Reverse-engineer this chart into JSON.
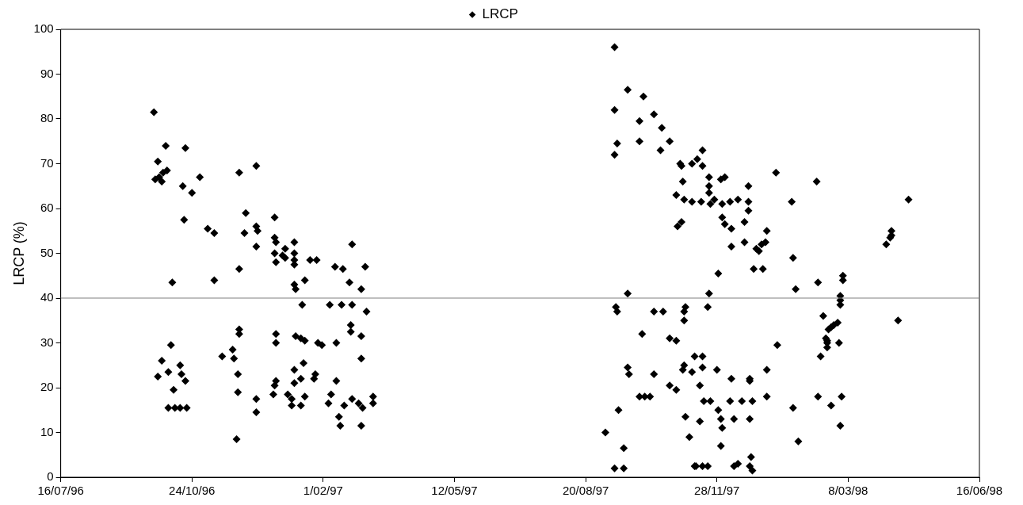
{
  "chart_data": {
    "type": "scatter",
    "ylabel": "LRCP (%)",
    "legend": "top",
    "marker": "diamond",
    "grid": false,
    "xlim": [
      "1996-07-16",
      "1998-06-16"
    ],
    "xticks": [
      {
        "value": "1996-07-16",
        "label": "16/07/96"
      },
      {
        "value": "1996-10-24",
        "label": "24/10/96"
      },
      {
        "value": "1997-02-01",
        "label": "1/02/97"
      },
      {
        "value": "1997-05-12",
        "label": "12/05/97"
      },
      {
        "value": "1997-08-20",
        "label": "20/08/97"
      },
      {
        "value": "1997-11-28",
        "label": "28/11/97"
      },
      {
        "value": "1998-03-08",
        "label": "8/03/98"
      },
      {
        "value": "1998-06-16",
        "label": "16/06/98"
      }
    ],
    "ylim": [
      0,
      100
    ],
    "yticks": [
      0,
      10,
      20,
      30,
      40,
      50,
      60,
      70,
      80,
      90,
      100
    ],
    "ref_lines": [
      {
        "axis": "y",
        "value": 40,
        "color": "#808080"
      }
    ],
    "series": [
      {
        "name": "LRCP",
        "color": "#000000",
        "x": [
          "1996-09-25",
          "1996-09-26",
          "1996-09-28",
          "1996-09-29",
          "1996-10-01",
          "1996-10-02",
          "1996-10-04",
          "1996-10-05",
          "1996-10-09",
          "1996-09-28",
          "1996-10-01",
          "1996-10-06",
          "1996-10-08",
          "1996-10-10",
          "1996-10-06",
          "1996-10-11",
          "1996-10-15",
          "1996-10-20",
          "1996-10-15",
          "1996-10-16",
          "1996-10-19",
          "1996-10-17",
          "1996-10-18",
          "1996-10-19",
          "1996-10-24",
          "1996-10-30",
          "1996-11-05",
          "1996-11-10",
          "1996-11-10",
          "1996-11-16",
          "1996-11-24",
          "1996-11-25",
          "1996-11-28",
          "1996-11-29",
          "1996-11-29",
          "1996-11-28",
          "1996-11-29",
          "1996-11-29",
          "1996-11-27",
          "1996-12-03",
          "1996-12-04",
          "1996-12-12",
          "1996-12-12",
          "1996-12-13",
          "1996-12-12",
          "1996-12-12",
          "1996-12-12",
          "1996-12-25",
          "1996-12-26",
          "1996-12-27",
          "1996-12-27",
          "1996-12-27",
          "1996-12-26",
          "1996-12-26",
          "1996-12-27",
          "1996-12-26",
          "1996-12-27",
          "1997-01-01",
          "1997-01-03",
          "1997-01-03",
          "1997-01-05",
          "1997-01-08",
          "1997-01-10",
          "1997-01-10",
          "1997-01-08",
          "1997-01-10",
          "1997-01-11",
          "1997-01-10",
          "1997-01-10",
          "1997-01-10",
          "1997-01-10",
          "1997-01-11",
          "1997-01-15",
          "1997-01-15",
          "1997-01-15",
          "1997-01-18",
          "1997-01-16",
          "1997-01-18",
          "1997-01-17",
          "1997-01-18",
          "1997-01-22",
          "1997-01-26",
          "1997-01-25",
          "1997-01-27",
          "1997-01-28",
          "1997-01-31",
          "1997-02-05",
          "1997-02-06",
          "1997-02-07",
          "1997-02-10",
          "1997-02-11",
          "1997-02-11",
          "1997-02-13",
          "1997-02-14",
          "1997-02-15",
          "1997-02-16",
          "1997-02-17",
          "1997-02-21",
          "1997-02-22",
          "1997-02-22",
          "1997-02-23",
          "1997-02-23",
          "1997-02-23",
          "1997-02-28",
          "1997-03-02",
          "1997-03-02",
          "1997-03-02",
          "1997-03-03",
          "1997-03-02",
          "1997-03-05",
          "1997-03-06",
          "1997-03-11",
          "1997-03-11",
          "1997-09-04",
          "1997-09-11",
          "1997-09-11",
          "1997-09-11",
          "1997-09-12",
          "1997-09-13",
          "1997-09-13",
          "1997-09-14",
          "1997-09-11",
          "1997-09-18",
          "1997-09-18",
          "1997-09-21",
          "1997-09-21",
          "1997-09-22",
          "1997-09-21",
          "1997-09-30",
          "1997-09-30",
          "1997-09-30",
          "1997-10-03",
          "1997-10-04",
          "1997-10-02",
          "1997-10-08",
          "1997-10-11",
          "1997-10-11",
          "1997-10-11",
          "1997-10-16",
          "1997-10-17",
          "1997-10-18",
          "1997-10-23",
          "1997-10-23",
          "1997-10-23",
          "1997-10-28",
          "1997-10-28",
          "1997-10-29",
          "1997-10-28",
          "1997-10-31",
          "1997-11-01",
          "1997-11-01",
          "1997-11-02",
          "1997-11-02",
          "1997-11-03",
          "1997-11-03",
          "1997-11-03",
          "1997-11-04",
          "1997-11-03",
          "1997-11-04",
          "1997-11-07",
          "1997-11-09",
          "1997-11-09",
          "1997-11-09",
          "1997-11-11",
          "1997-11-13",
          "1997-11-15",
          "1997-11-15",
          "1997-11-16",
          "1997-11-17",
          "1997-11-17",
          "1997-11-17",
          "1997-11-17",
          "1997-11-18",
          "1997-11-17",
          "1997-11-12",
          "1997-11-11",
          "1997-11-21",
          "1997-11-22",
          "1997-11-22",
          "1997-11-22",
          "1997-11-23",
          "1997-11-21",
          "1997-11-22",
          "1997-11-23",
          "1997-11-26",
          "1997-11-29",
          "1997-11-28",
          "1997-11-29",
          "1997-12-01",
          "1997-12-02",
          "1997-12-01",
          "1997-12-02",
          "1997-12-02",
          "1997-12-01",
          "1997-12-04",
          "1997-12-04",
          "1997-12-08",
          "1997-12-09",
          "1997-12-09",
          "1997-12-09",
          "1997-12-08",
          "1997-12-11",
          "1997-12-11",
          "1997-12-14",
          "1997-12-17",
          "1997-12-14",
          "1997-12-19",
          "1997-12-19",
          "1997-12-22",
          "1997-12-22",
          "1997-12-22",
          "1997-12-23",
          "1997-12-23",
          "1997-12-23",
          "1997-12-23",
          "1997-12-25",
          "1997-12-25",
          "1997-12-24",
          "1997-12-26",
          "1997-12-28",
          "1997-12-30",
          "1998-01-01",
          "1998-01-02",
          "1998-01-04",
          "1998-01-05",
          "1998-01-05",
          "1998-01-05",
          "1998-01-12",
          "1998-01-13",
          "1998-01-24",
          "1998-01-25",
          "1998-01-25",
          "1998-01-27",
          "1998-01-29",
          "1998-02-12",
          "1998-02-13",
          "1998-02-13",
          "1998-02-15",
          "1998-02-17",
          "1998-02-19",
          "1998-02-20",
          "1998-02-20",
          "1998-02-20",
          "1998-02-21",
          "1998-02-23",
          "1998-02-23",
          "1998-02-25",
          "1998-02-28",
          "1998-03-01",
          "1998-03-02",
          "1998-03-02",
          "1998-03-02",
          "1998-03-04",
          "1998-03-04",
          "1998-03-03",
          "1998-03-02",
          "1998-04-06",
          "1998-04-09",
          "1998-04-10",
          "1998-04-10",
          "1998-04-15",
          "1998-04-23"
        ],
        "values": [
          81.5,
          66.5,
          70.5,
          67,
          66,
          68,
          74,
          68.5,
          43.5,
          22.5,
          26,
          23.5,
          29.5,
          19.5,
          15.5,
          15.5,
          15.5,
          15.5,
          25,
          23,
          21.5,
          65,
          57.5,
          73.5,
          63.5,
          67,
          55.5,
          54.5,
          44,
          27,
          28.5,
          26.5,
          23,
          33,
          32,
          19,
          68,
          46.5,
          8.5,
          54.5,
          59,
          56,
          51.5,
          55,
          69.5,
          17.5,
          14.5,
          18.5,
          20.5,
          21.5,
          30,
          32,
          58,
          53.5,
          52.5,
          50,
          48,
          49.5,
          51,
          49,
          18.5,
          17.5,
          21,
          24,
          16,
          43,
          42,
          47.5,
          48.5,
          50,
          52.5,
          31.5,
          31,
          16,
          22,
          18,
          38.5,
          44,
          25.5,
          30.5,
          48.5,
          23,
          22,
          48.5,
          30,
          29.5,
          16.5,
          38.5,
          18.5,
          47,
          30,
          21.5,
          13.5,
          11.5,
          38.5,
          46.5,
          16,
          43.5,
          34,
          32.5,
          52,
          38.5,
          17.5,
          16.5,
          42,
          31.5,
          26.5,
          15.5,
          11.5,
          47,
          37,
          16.5,
          18,
          10,
          96,
          82,
          72,
          38,
          37,
          74.5,
          15,
          2,
          2,
          6.5,
          41,
          24.5,
          23,
          86.5,
          79.5,
          75,
          18,
          85,
          18,
          32,
          18,
          23,
          81,
          37,
          73,
          78,
          37,
          75,
          31,
          20.5,
          30.5,
          63,
          56,
          19.5,
          70,
          57,
          69.5,
          66,
          24,
          35,
          25,
          62,
          38,
          37,
          13.5,
          9,
          23.5,
          61.5,
          70,
          27,
          71,
          20.5,
          12.5,
          61.5,
          73,
          27,
          69.5,
          24.5,
          17,
          2.5,
          2.5,
          2.5,
          2.5,
          67,
          63.5,
          65,
          17,
          38,
          41,
          61,
          62,
          45.5,
          24,
          15,
          13,
          11,
          7,
          61,
          58,
          66.5,
          56.5,
          67,
          61.5,
          55.5,
          51.5,
          22,
          17,
          13,
          2.5,
          62,
          17,
          3,
          57,
          52.5,
          59.5,
          61.5,
          65,
          22,
          21.5,
          13,
          2.5,
          17,
          1.5,
          4.5,
          46.5,
          51,
          50.5,
          52,
          46.5,
          52.5,
          18,
          24,
          55,
          68,
          29.5,
          61.5,
          15.5,
          49,
          42,
          8,
          66,
          43.5,
          18,
          27,
          36,
          31,
          30,
          29,
          30.5,
          33,
          33.5,
          16,
          34,
          34.5,
          30,
          38.5,
          39.5,
          40.5,
          44,
          45,
          18,
          11.5,
          52,
          53.5,
          55,
          54,
          35,
          62
        ]
      }
    ]
  }
}
